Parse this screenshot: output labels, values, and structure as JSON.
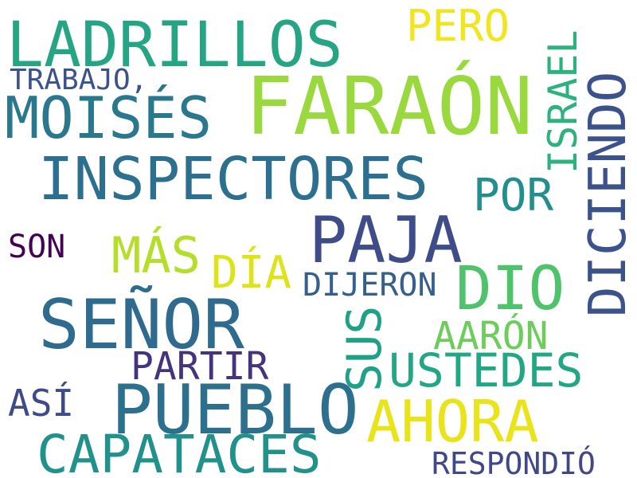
{
  "cloud": {
    "words": [
      {
        "text": "FARAÓN",
        "color": "#9ad93e"
      },
      {
        "text": "LADRILLOS",
        "color": "#25a584"
      },
      {
        "text": "MOISÉS",
        "color": "#2a788e"
      },
      {
        "text": "INSPECTORES",
        "color": "#2c6f8e"
      },
      {
        "text": "SEÑOR",
        "color": "#2f6b8e"
      },
      {
        "text": "PUEBLO",
        "color": "#2d708e"
      },
      {
        "text": "CAPATACES",
        "color": "#21918c"
      },
      {
        "text": "PAJA",
        "color": "#3e4c8a"
      },
      {
        "text": "DICIENDO",
        "color": "#3b528b"
      },
      {
        "text": "DIO",
        "color": "#4ec36b"
      },
      {
        "text": "AHORA",
        "color": "#e8e419"
      },
      {
        "text": "USTEDES",
        "color": "#22a785"
      },
      {
        "text": "SUS",
        "color": "#1fa187"
      },
      {
        "text": "POR",
        "color": "#218f8d"
      },
      {
        "text": "ISRAEL",
        "color": "#2db27d"
      },
      {
        "text": "PERO",
        "color": "#f1e51d"
      },
      {
        "text": "MÁS",
        "color": "#b5de2b"
      },
      {
        "text": "DÍA",
        "color": "#dde318"
      },
      {
        "text": "AARÓN",
        "color": "#6ccd5a"
      },
      {
        "text": "PARTIR",
        "color": "#46337e"
      },
      {
        "text": "DIJERON",
        "color": "#355f8d"
      },
      {
        "text": "TRABAJO,",
        "color": "#3b528b"
      },
      {
        "text": "ASÍ",
        "color": "#3e4a89"
      },
      {
        "text": "SON",
        "color": "#440154"
      },
      {
        "text": "RESPONDIÓ",
        "color": "#3f4889"
      }
    ]
  }
}
